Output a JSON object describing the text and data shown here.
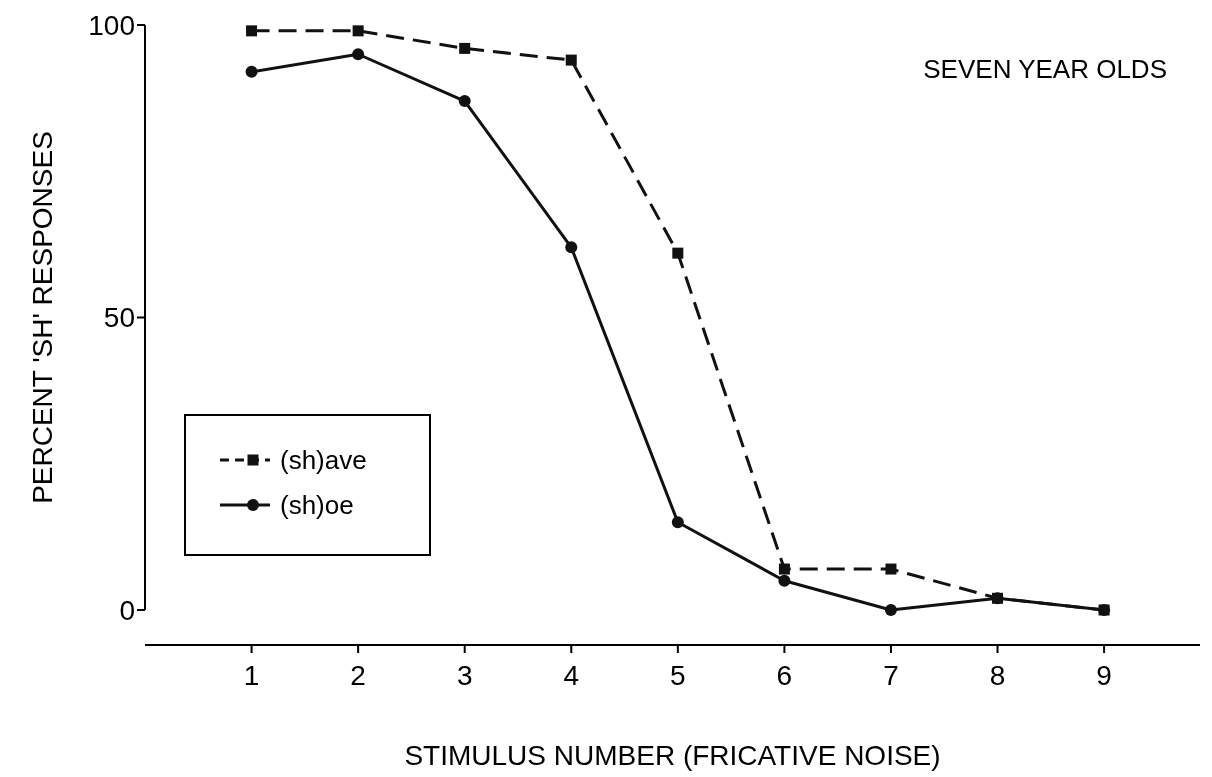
{
  "chart_data": {
    "type": "line",
    "xlabel": "STIMULUS NUMBER  (FRICATIVE NOISE)",
    "ylabel": "PERCENT 'SH' RESPONSES",
    "annotations": [
      "SEVEN YEAR OLDS"
    ],
    "x": [
      1,
      2,
      3,
      4,
      5,
      6,
      7,
      8,
      9
    ],
    "xlim": [
      0,
      9.9
    ],
    "xticks": [
      1,
      2,
      3,
      4,
      5,
      6,
      7,
      8,
      9
    ],
    "ylim": [
      0,
      100
    ],
    "yticks": [
      0,
      50,
      100
    ],
    "grid": false,
    "legend": "bottom left",
    "series": [
      {
        "name": "(sh)ave",
        "color": "#111111",
        "marker": "square",
        "line_style": "dashed",
        "values": [
          99,
          99,
          96,
          94,
          61,
          7,
          7,
          2,
          0
        ]
      },
      {
        "name": "(sh)oe",
        "color": "#111111",
        "marker": "circle",
        "line_style": "solid",
        "values": [
          92,
          95,
          87,
          62,
          15,
          5,
          0,
          2,
          0
        ]
      }
    ]
  }
}
